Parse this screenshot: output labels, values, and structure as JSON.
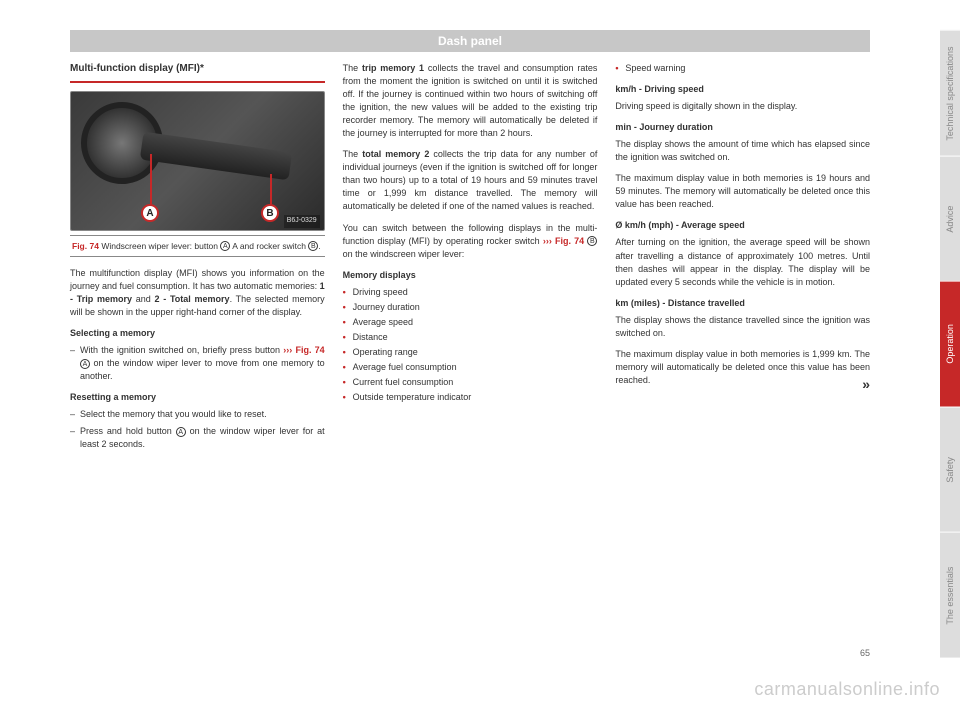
{
  "header": "Dash panel",
  "page_number": "65",
  "watermark": "carmanualsonline.info",
  "figure": {
    "id": "B6J-0329",
    "marker_a": "A",
    "marker_b": "B",
    "caption_ref": "Fig. 74",
    "caption_text_1": "Windscreen wiper lever: button ",
    "caption_a": "A",
    "caption_text_2": " A and rocker switch ",
    "caption_b": "B",
    "caption_text_3": "."
  },
  "col1": {
    "title": "Multi-function display (MFI)*",
    "p1a": "The multifunction display (MFI) shows you information on the journey and fuel consumption. It has two automatic memories: ",
    "p1b": "1 - Trip memory",
    "p1c": " and ",
    "p1d": "2 - Total memory",
    "p1e": ". The selected memory will be shown in the upper right-hand corner of the display.",
    "sub1": "Selecting a memory",
    "d1a": "With the ignition switched on, briefly press button ",
    "d1_link": "››› Fig. 74",
    "d1_circ": "A",
    "d1b": " on the window wiper lever to move from one memory to another.",
    "sub2": "Resetting a memory",
    "d2": "Select the memory that you would like to reset.",
    "d3a": "Press and hold button ",
    "d3_circ": "A",
    "d3b": " on the window wiper lever for at least 2 seconds."
  },
  "col2": {
    "p1a": "The ",
    "p1b": "trip memory 1",
    "p1c": " collects the travel and consumption rates from the moment the ignition is switched on until it is switched off. If the journey is continued within two hours of switching off the ignition, the new values will be added to the existing trip recorder memory. The memory will automatically be deleted if the journey is interrupted for more than 2 hours.",
    "p2a": "The ",
    "p2b": "total memory 2",
    "p2c": " collects the trip data for any number of individual journeys (even if the ignition is switched off for longer than two hours) up to a total of 19 hours and 59 minutes travel time or 1,999 km distance travelled. The memory will automatically be deleted if one of the named values is reached.",
    "p3a": "You can switch between the following displays in the multi-function display (MFI) by operating rocker switch ",
    "p3_link": "››› Fig. 74",
    "p3_circ": "B",
    "p3b": " on the windscreen wiper lever:",
    "sub1": "Memory displays",
    "items": [
      "Driving speed",
      "Journey duration",
      "Average speed",
      "Distance",
      "Operating range",
      "Average fuel consumption",
      "Current fuel consumption",
      "Outside temperature indicator"
    ]
  },
  "col3": {
    "item0": "Speed warning",
    "sub1": "km/h - Driving speed",
    "p1": "Driving speed is digitally shown in the display.",
    "sub2": "min - Journey duration",
    "p2": "The display shows the amount of time which has elapsed since the ignition was switched on.",
    "p3": "The maximum display value in both memories is 19 hours and 59 minutes. The memory will automatically be deleted once this value has been reached.",
    "sub3": "Ø km/h (mph) - Average speed",
    "p4": "After turning on the ignition, the average speed will be shown after travelling a distance of approximately 100 metres. Until then dashes will appear in the display. The display will be updated every 5 seconds while the vehicle is in motion.",
    "sub4": "km (miles) - Distance travelled",
    "p5": "The display shows the distance travelled since the ignition was switched on.",
    "p6": "The maximum display value in both memories is 1,999 km. The memory will automatically be deleted once this value has been reached.",
    "cont": "»"
  },
  "tabs": [
    "Technical specifications",
    "Advice",
    "Operation",
    "Safety",
    "The essentials"
  ],
  "active_tab_index": 2
}
